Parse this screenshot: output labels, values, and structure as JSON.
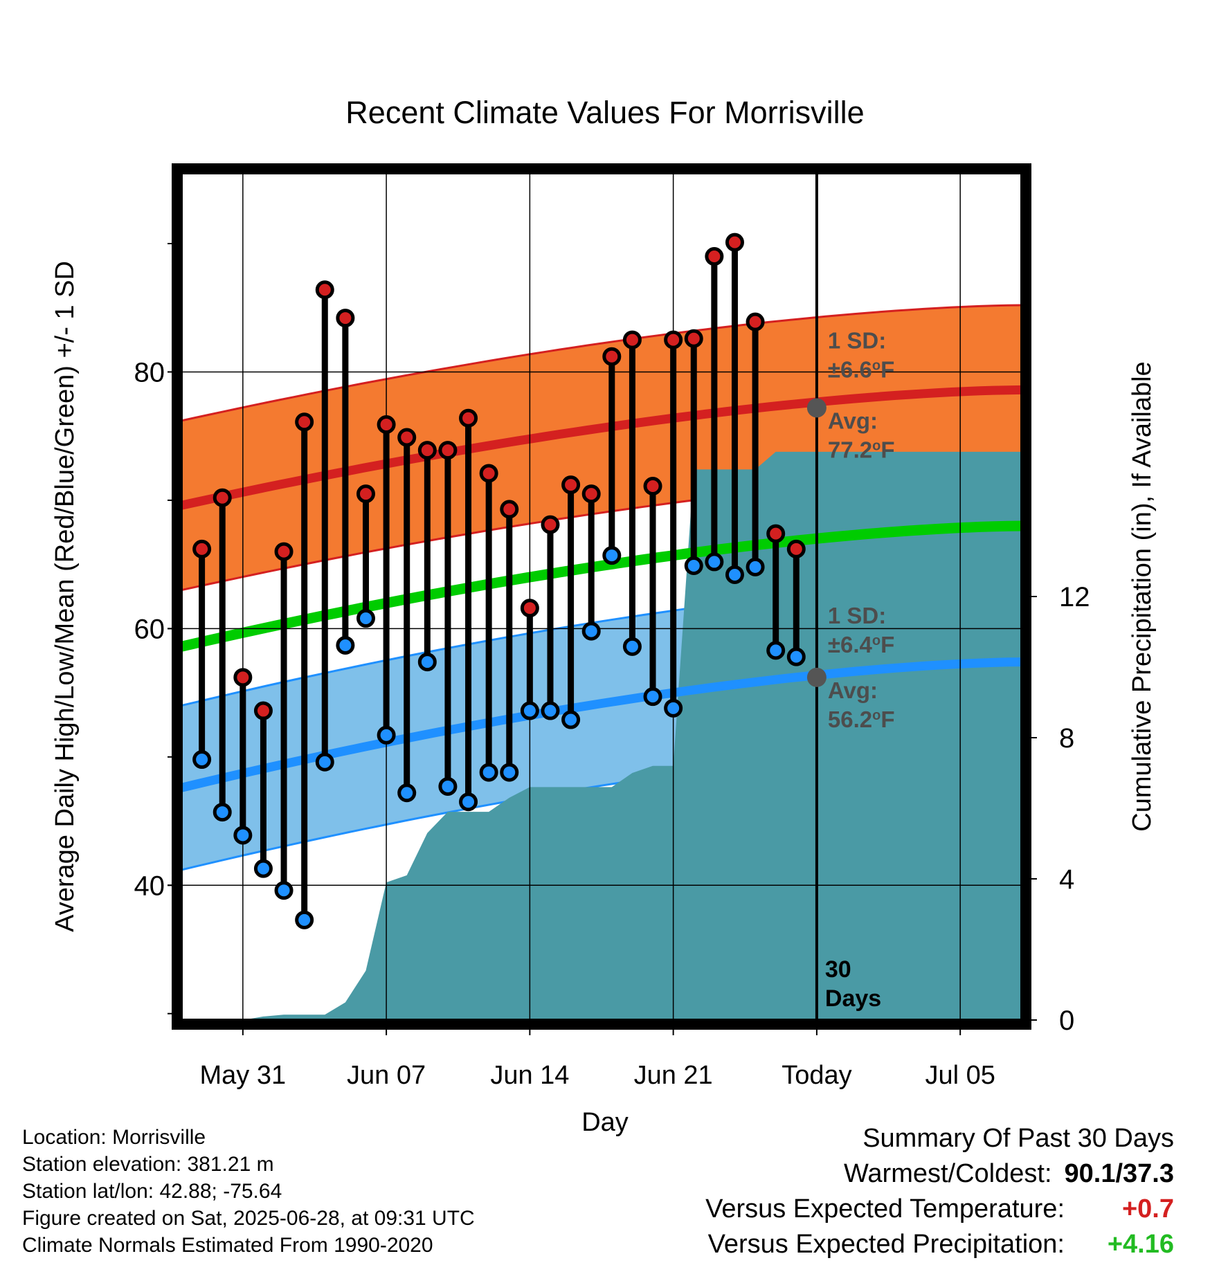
{
  "chart_data": {
    "type": "line",
    "title": "Recent Climate Values For Morrisville",
    "xlabel": "Day",
    "ylabel": "Average Daily High/Low/Mean (Red/Blue/Green) +/- 1 SD",
    "y2label": "Cumulative Precipitation (in), If Available",
    "x_ticks": [
      "May 31",
      "Jun 07",
      "Jun 14",
      "Jun 21",
      "Today",
      "Jul 05"
    ],
    "x_tick_day_index": [
      3,
      10,
      17,
      24,
      31,
      38
    ],
    "x_day_range": [
      0,
      41
    ],
    "ylim": [
      29.5,
      95.5
    ],
    "y_ticks": [
      40,
      60,
      80
    ],
    "y2lim": [
      0,
      24
    ],
    "y2_ticks": [
      0,
      4,
      8,
      12
    ],
    "grid": true,
    "today_day_index": 31,
    "today_label": "30\nDays",
    "daily_observations": {
      "day_index": [
        1,
        2,
        3,
        4,
        5,
        6,
        7,
        8,
        9,
        10,
        11,
        12,
        13,
        14,
        15,
        16,
        17,
        18,
        19,
        20,
        21,
        22,
        23,
        24,
        25,
        26,
        27,
        28,
        29,
        30
      ],
      "high": [
        66.2,
        70.2,
        56.2,
        53.6,
        66.0,
        76.1,
        86.4,
        84.2,
        70.5,
        75.9,
        74.9,
        73.9,
        73.9,
        76.4,
        72.1,
        69.3,
        61.6,
        68.1,
        71.2,
        70.5,
        81.2,
        82.5,
        71.1,
        82.5,
        82.6,
        89.0,
        90.1,
        83.9,
        67.4,
        66.2
      ],
      "low": [
        49.8,
        45.7,
        43.9,
        41.3,
        39.6,
        37.3,
        49.6,
        58.7,
        60.8,
        51.7,
        47.2,
        57.4,
        47.7,
        46.5,
        48.8,
        48.8,
        53.6,
        53.6,
        52.9,
        59.8,
        65.7,
        58.6,
        54.7,
        53.8,
        64.9,
        65.2,
        64.2,
        64.8,
        58.3,
        57.8
      ]
    },
    "normal_high": {
      "mean_start": 69.6,
      "mean_end": 78.6,
      "mean_today": 77.2,
      "sd": 6.6,
      "color": "#d42020",
      "band_color": "#f47a30",
      "sd_label": "1 SD:",
      "sd_value": "±6.6°F",
      "avg_label": "Avg:",
      "avg_value": "77.2°F"
    },
    "normal_low": {
      "mean_start": 47.6,
      "mean_end": 57.4,
      "mean_today": 56.2,
      "sd": 6.4,
      "color": "#1f90ff",
      "band_color": "#7fc0ea",
      "sd_label": "1 SD:",
      "sd_value": "±6.4°F",
      "avg_label": "Avg:",
      "avg_value": "56.2°F"
    },
    "normal_mean": {
      "start": 58.6,
      "end": 68.0,
      "color": "#00cc00"
    },
    "cumulative_precip": {
      "color": "#4a9aa5",
      "day_index": [
        0,
        3,
        4,
        5,
        6,
        7,
        8,
        9,
        10,
        11,
        12,
        13,
        14,
        15,
        16,
        17,
        18,
        19,
        20,
        21,
        22,
        23,
        24,
        25,
        26,
        27,
        28,
        29,
        30,
        31,
        41
      ],
      "inches": [
        0.0,
        0.0,
        0.1,
        0.15,
        0.15,
        0.15,
        0.5,
        1.4,
        3.9,
        4.1,
        5.3,
        5.9,
        5.9,
        5.9,
        6.3,
        6.6,
        6.6,
        6.6,
        6.6,
        6.6,
        7.0,
        7.2,
        7.2,
        15.6,
        15.6,
        15.6,
        15.6,
        16.1,
        16.1,
        16.1,
        16.1
      ]
    }
  },
  "footer": {
    "location": "Location: Morrisville",
    "elevation": "Station elevation: 381.21 m",
    "latlon": "Station lat/lon: 42.88; -75.64",
    "created": "Figure created on Sat, 2025-06-28, at 09:31 UTC",
    "normals": "Climate Normals Estimated From 1990-2020"
  },
  "summary": {
    "title": "Summary Of Past 30 Days",
    "warmest_coldest_label": "Warmest/Coldest:",
    "warmest_coldest_value": "90.1/37.3",
    "temp_label": "Versus Expected Temperature:",
    "temp_value": "+0.7",
    "temp_color": "#d42020",
    "precip_label": "Versus Expected Precipitation:",
    "precip_value": "+4.16",
    "precip_color": "#22bb22"
  }
}
